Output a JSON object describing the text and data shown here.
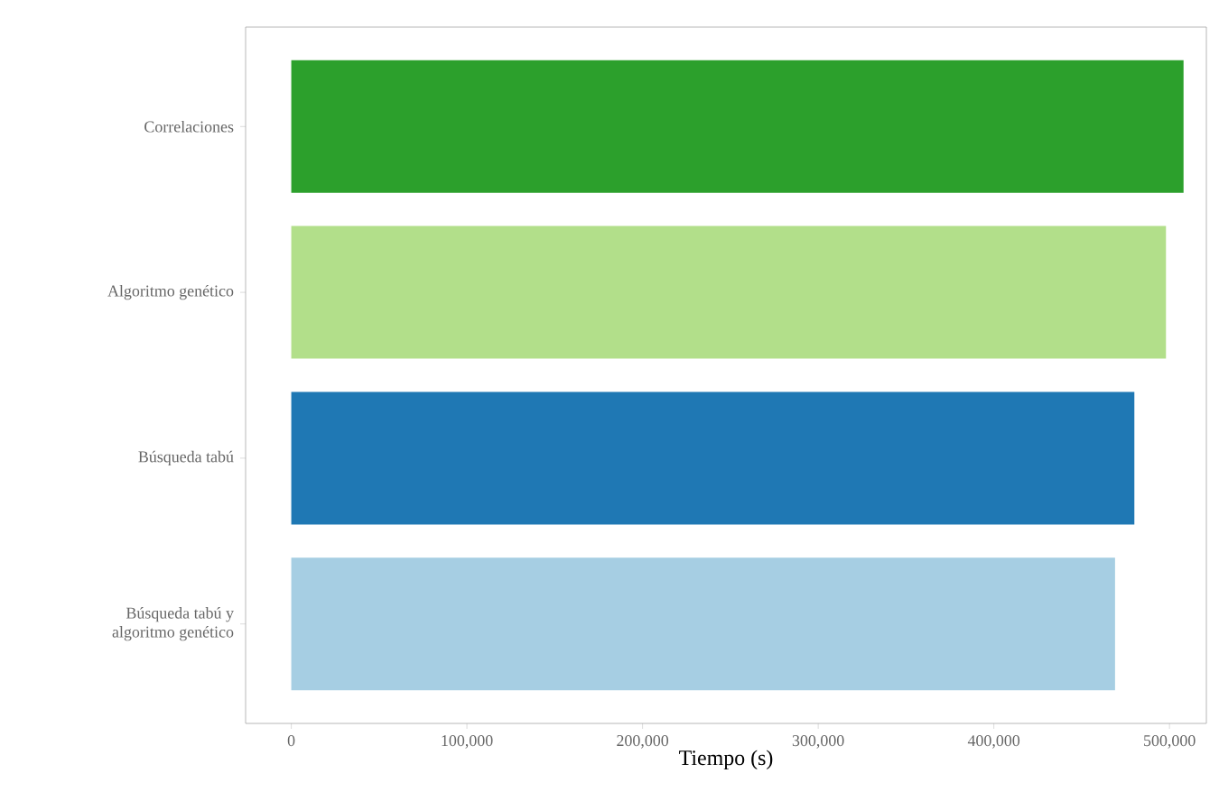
{
  "chart_data": {
    "type": "bar",
    "orientation": "horizontal",
    "xlabel": "Tiempo (s)",
    "categories": [
      "Correlaciones",
      "Algoritmo genético",
      "Búsqueda tabú",
      "Búsqueda tabú y algoritmo genético"
    ],
    "values": [
      508000,
      498000,
      480000,
      469000
    ],
    "colors": [
      "#2ca02c",
      "#b2df8a",
      "#1f78b4",
      "#a6cee3"
    ],
    "xlim": [
      -26000,
      521000
    ],
    "xticks": [
      {
        "value": 0,
        "label": "0"
      },
      {
        "value": 100000,
        "label": "100,000"
      },
      {
        "value": 200000,
        "label": "200,000"
      },
      {
        "value": 300000,
        "label": "300,000"
      },
      {
        "value": 400000,
        "label": "400,000"
      },
      {
        "value": 500000,
        "label": "500,000"
      }
    ],
    "grid": false
  }
}
